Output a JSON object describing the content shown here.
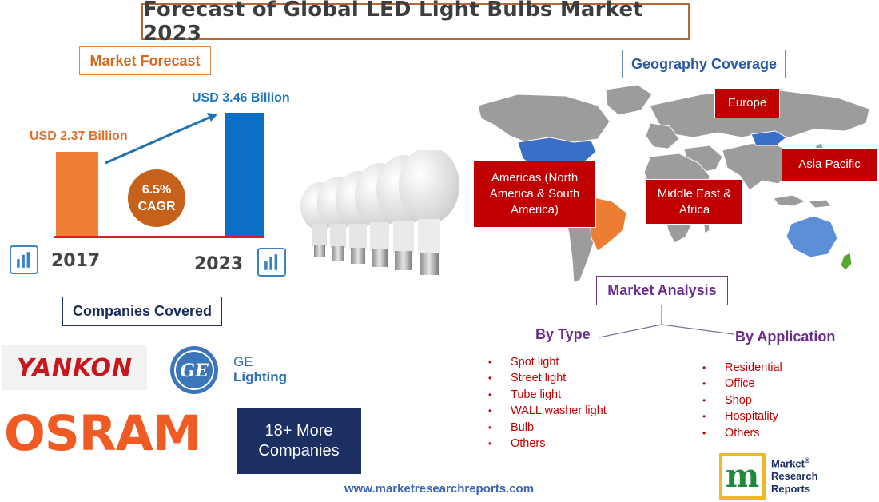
{
  "title": "Forecast of Global LED Light Bulbs Market 2023",
  "forecast": {
    "heading": "Market Forecast",
    "value_2017": "USD 2.37 Billion",
    "value_2023": "USD 3.46 Billion",
    "cagr_value": "6.5%",
    "cagr_label": "CAGR",
    "year_start": "2017",
    "year_end": "2023"
  },
  "companies": {
    "heading": "Companies Covered",
    "yankon": "YANKON",
    "ge_line1": "GE",
    "ge_line2": "Lighting",
    "osram": "OSRAM",
    "more_line1": "18+ More",
    "more_line2": "Companies"
  },
  "geography": {
    "heading": "Geography Coverage",
    "europe": "Europe",
    "americas": "Americas (North America & South America)",
    "mea": "Middle East & Africa",
    "apac": "Asia Pacific"
  },
  "analysis": {
    "heading": "Market Analysis",
    "by_type": "By Type",
    "by_application": "By Application",
    "types": [
      "Spot light",
      "Street light",
      "Tube light",
      "WALL washer light",
      "Bulb",
      "Others"
    ],
    "applications": [
      "Residential",
      "Office",
      "Shop",
      "Hospitality",
      "Others"
    ]
  },
  "footer": {
    "url": "www.marketresearchreports.com",
    "logo_letter": "m",
    "brand_line1": "Market",
    "brand_line2": "Research",
    "brand_line3": "Reports",
    "registered": "®"
  },
  "colors": {
    "bar_2017": "#ef7f35",
    "bar_2023": "#0b6fc6",
    "region_red": "#c00000",
    "purple": "#6b2d8b"
  }
}
